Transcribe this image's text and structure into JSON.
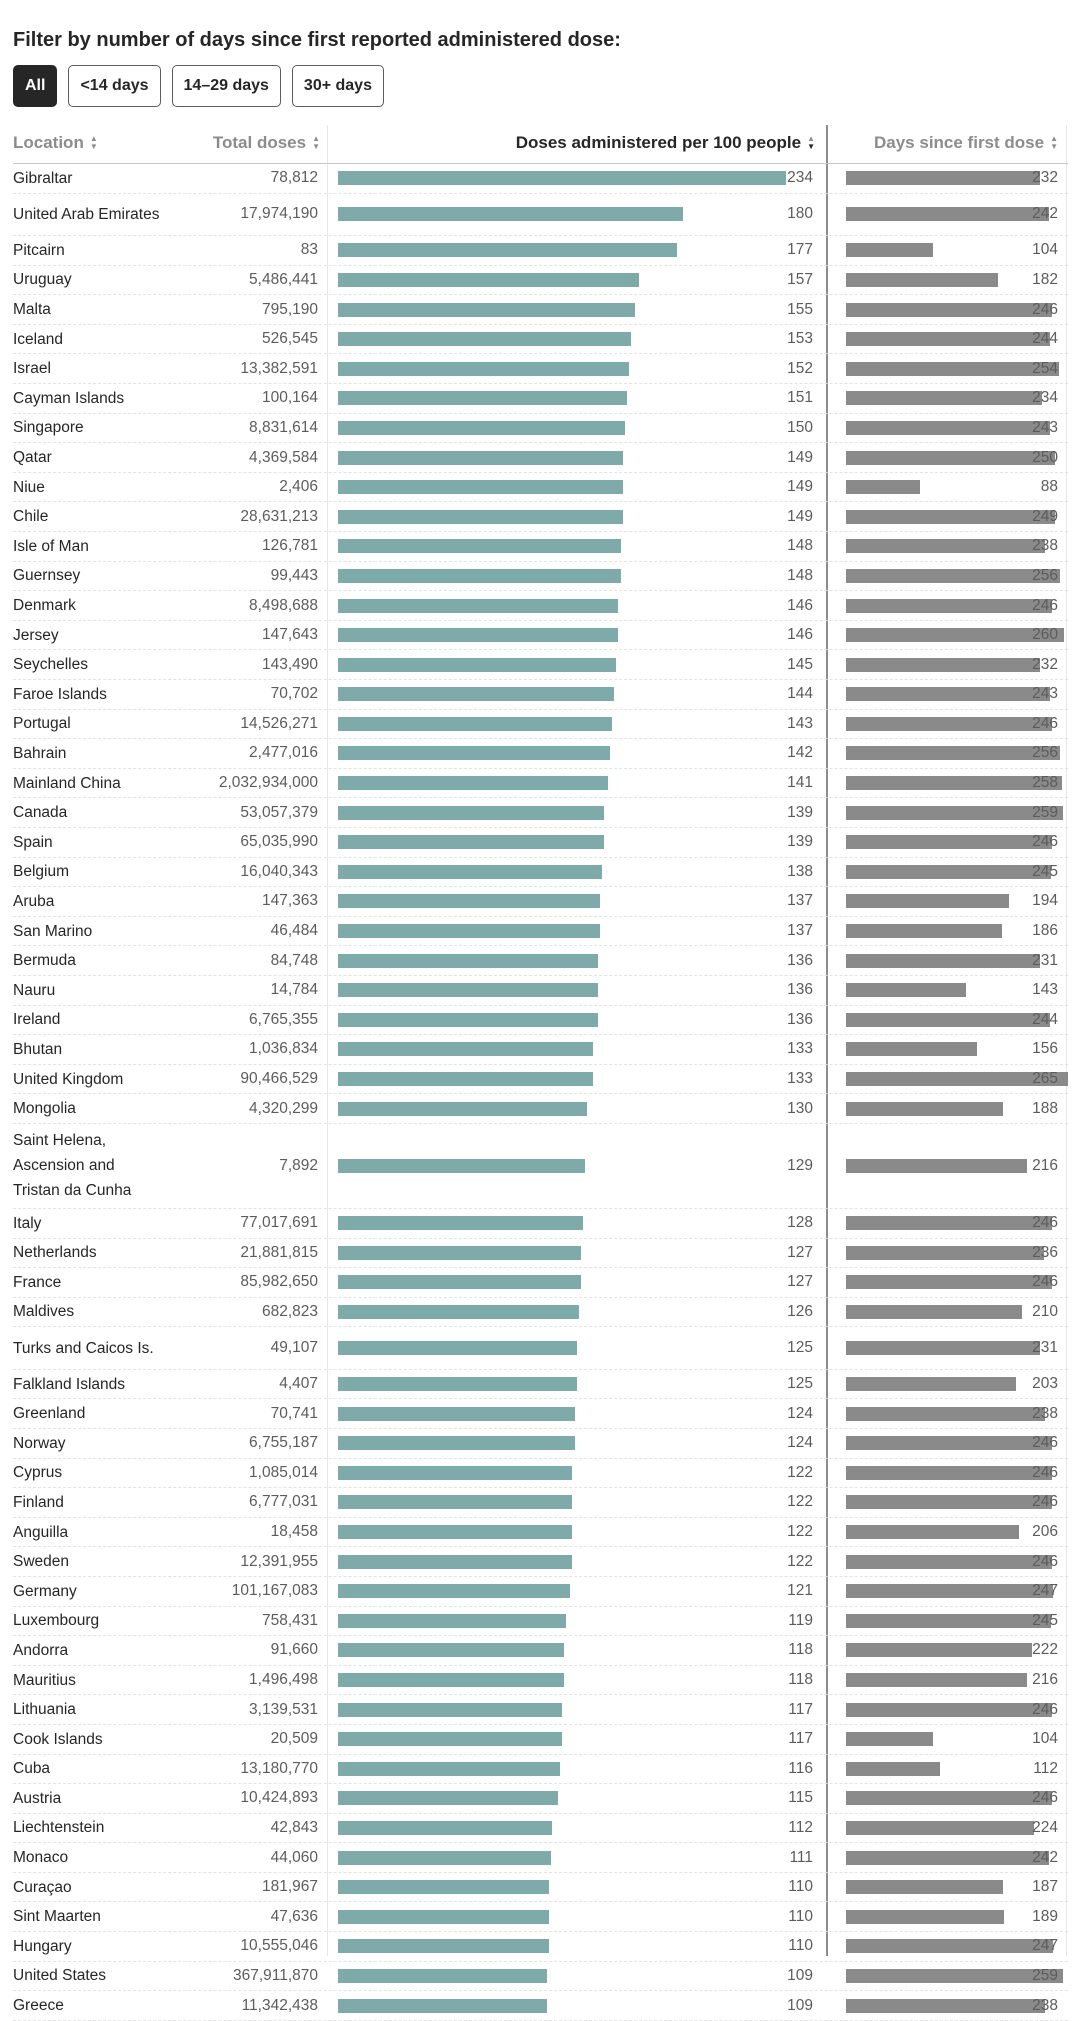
{
  "filter": {
    "title": "Filter by number of days since first reported administered dose:",
    "buttons": [
      "All",
      "<14 days",
      "14–29 days",
      "30+ days"
    ],
    "selected": "All"
  },
  "table": {
    "headers": {
      "location": "Location",
      "total": "Total doses",
      "doses": "Doses administered per 100 people",
      "days": "Days since first dose"
    },
    "sort_up_icon": "▲",
    "sort_down_icon": "▼",
    "sorted_column": "doses"
  },
  "colors": {
    "dose_bar": "#7eaaaa",
    "days_bar": "#8a8a8a",
    "active_button": "#262626"
  },
  "chart_data": {
    "type": "table",
    "dose_scale_max": 234,
    "days_scale_max": 265,
    "rows": [
      {
        "location": "Gibraltar",
        "total": "78,812",
        "doses": 234,
        "days": 232
      },
      {
        "location": "United Arab Emirates",
        "total": "17,974,190",
        "doses": 180,
        "days": 242
      },
      {
        "location": "Pitcairn",
        "total": "83",
        "doses": 177,
        "days": 104
      },
      {
        "location": "Uruguay",
        "total": "5,486,441",
        "doses": 157,
        "days": 182
      },
      {
        "location": "Malta",
        "total": "795,190",
        "doses": 155,
        "days": 246
      },
      {
        "location": "Iceland",
        "total": "526,545",
        "doses": 153,
        "days": 244
      },
      {
        "location": "Israel",
        "total": "13,382,591",
        "doses": 152,
        "days": 254
      },
      {
        "location": "Cayman Islands",
        "total": "100,164",
        "doses": 151,
        "days": 234
      },
      {
        "location": "Singapore",
        "total": "8,831,614",
        "doses": 150,
        "days": 243
      },
      {
        "location": "Qatar",
        "total": "4,369,584",
        "doses": 149,
        "days": 250
      },
      {
        "location": "Niue",
        "total": "2,406",
        "doses": 149,
        "days": 88
      },
      {
        "location": "Chile",
        "total": "28,631,213",
        "doses": 149,
        "days": 249
      },
      {
        "location": "Isle of Man",
        "total": "126,781",
        "doses": 148,
        "days": 238
      },
      {
        "location": "Guernsey",
        "total": "99,443",
        "doses": 148,
        "days": 256
      },
      {
        "location": "Denmark",
        "total": "8,498,688",
        "doses": 146,
        "days": 246
      },
      {
        "location": "Jersey",
        "total": "147,643",
        "doses": 146,
        "days": 260
      },
      {
        "location": "Seychelles",
        "total": "143,490",
        "doses": 145,
        "days": 232
      },
      {
        "location": "Faroe Islands",
        "total": "70,702",
        "doses": 144,
        "days": 243
      },
      {
        "location": "Portugal",
        "total": "14,526,271",
        "doses": 143,
        "days": 246
      },
      {
        "location": "Bahrain",
        "total": "2,477,016",
        "doses": 142,
        "days": 256
      },
      {
        "location": "Mainland China",
        "total": "2,032,934,000",
        "doses": 141,
        "days": 258
      },
      {
        "location": "Canada",
        "total": "53,057,379",
        "doses": 139,
        "days": 259
      },
      {
        "location": "Spain",
        "total": "65,035,990",
        "doses": 139,
        "days": 246
      },
      {
        "location": "Belgium",
        "total": "16,040,343",
        "doses": 138,
        "days": 245
      },
      {
        "location": "Aruba",
        "total": "147,363",
        "doses": 137,
        "days": 194
      },
      {
        "location": "San Marino",
        "total": "46,484",
        "doses": 137,
        "days": 186
      },
      {
        "location": "Bermuda",
        "total": "84,748",
        "doses": 136,
        "days": 231
      },
      {
        "location": "Nauru",
        "total": "14,784",
        "doses": 136,
        "days": 143
      },
      {
        "location": "Ireland",
        "total": "6,765,355",
        "doses": 136,
        "days": 244
      },
      {
        "location": "Bhutan",
        "total": "1,036,834",
        "doses": 133,
        "days": 156
      },
      {
        "location": "United Kingdom",
        "total": "90,466,529",
        "doses": 133,
        "days": 265
      },
      {
        "location": "Mongolia",
        "total": "4,320,299",
        "doses": 130,
        "days": 188
      },
      {
        "location": "Saint Helena, Ascension and Tristan da Cunha",
        "total": "7,892",
        "doses": 129,
        "days": 216
      },
      {
        "location": "Italy",
        "total": "77,017,691",
        "doses": 128,
        "days": 246
      },
      {
        "location": "Netherlands",
        "total": "21,881,815",
        "doses": 127,
        "days": 236
      },
      {
        "location": "France",
        "total": "85,982,650",
        "doses": 127,
        "days": 246
      },
      {
        "location": "Maldives",
        "total": "682,823",
        "doses": 126,
        "days": 210
      },
      {
        "location": "Turks and Caicos Is.",
        "total": "49,107",
        "doses": 125,
        "days": 231
      },
      {
        "location": "Falkland Islands",
        "total": "4,407",
        "doses": 125,
        "days": 203
      },
      {
        "location": "Greenland",
        "total": "70,741",
        "doses": 124,
        "days": 238
      },
      {
        "location": "Norway",
        "total": "6,755,187",
        "doses": 124,
        "days": 246
      },
      {
        "location": "Cyprus",
        "total": "1,085,014",
        "doses": 122,
        "days": 246
      },
      {
        "location": "Finland",
        "total": "6,777,031",
        "doses": 122,
        "days": 246
      },
      {
        "location": "Anguilla",
        "total": "18,458",
        "doses": 122,
        "days": 206
      },
      {
        "location": "Sweden",
        "total": "12,391,955",
        "doses": 122,
        "days": 246
      },
      {
        "location": "Germany",
        "total": "101,167,083",
        "doses": 121,
        "days": 247
      },
      {
        "location": "Luxembourg",
        "total": "758,431",
        "doses": 119,
        "days": 245
      },
      {
        "location": "Andorra",
        "total": "91,660",
        "doses": 118,
        "days": 222
      },
      {
        "location": "Mauritius",
        "total": "1,496,498",
        "doses": 118,
        "days": 216
      },
      {
        "location": "Lithuania",
        "total": "3,139,531",
        "doses": 117,
        "days": 246
      },
      {
        "location": "Cook Islands",
        "total": "20,509",
        "doses": 117,
        "days": 104
      },
      {
        "location": "Cuba",
        "total": "13,180,770",
        "doses": 116,
        "days": 112
      },
      {
        "location": "Austria",
        "total": "10,424,893",
        "doses": 115,
        "days": 246
      },
      {
        "location": "Liechtenstein",
        "total": "42,843",
        "doses": 112,
        "days": 224
      },
      {
        "location": "Monaco",
        "total": "44,060",
        "doses": 111,
        "days": 242
      },
      {
        "location": "Curaçao",
        "total": "181,967",
        "doses": 110,
        "days": 187
      },
      {
        "location": "Sint Maarten",
        "total": "47,636",
        "doses": 110,
        "days": 189
      },
      {
        "location": "Hungary",
        "total": "10,555,046",
        "doses": 110,
        "days": 247
      },
      {
        "location": "United States",
        "total": "367,911,870",
        "doses": 109,
        "days": 259
      },
      {
        "location": "Greece",
        "total": "11,342,438",
        "doses": 109,
        "days": 238
      }
    ]
  }
}
